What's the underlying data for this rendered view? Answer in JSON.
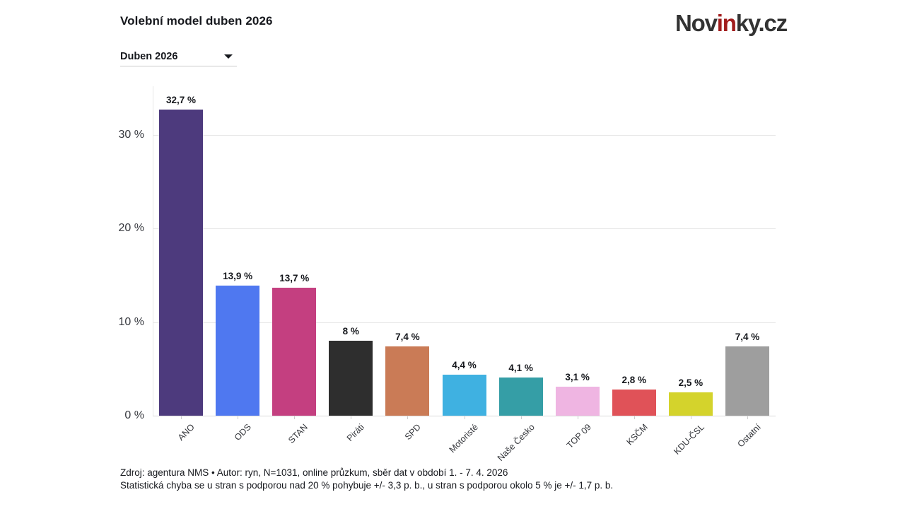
{
  "header": {
    "title": "Volební model duben 2026",
    "logo": {
      "part1": "Nov",
      "part2": "in",
      "part3": "ky.cz"
    }
  },
  "filter": {
    "selected": "Duben 2026"
  },
  "chart_data": {
    "type": "bar",
    "title": "Volební model duben 2026",
    "categories": [
      "ANO",
      "ODS",
      "STAN",
      "Piráti",
      "SPD",
      "Motoristé",
      "Naše Česko",
      "TOP 09",
      "KSČM",
      "KDU-ČSL",
      "Ostatní"
    ],
    "values": [
      32.7,
      13.9,
      13.7,
      8,
      7.4,
      4.4,
      4.1,
      3.1,
      2.8,
      2.5,
      7.4
    ],
    "value_labels": [
      "32,7 %",
      "13,9 %",
      "13,7 %",
      "8 %",
      "7,4 %",
      "4,4 %",
      "4,1 %",
      "3,1 %",
      "2,8 %",
      "2,5 %",
      "7,4 %"
    ],
    "colors": [
      "#4d3a7d",
      "#4f78f0",
      "#c43f80",
      "#2e2e2e",
      "#ca7b56",
      "#3fb1e1",
      "#359ea6",
      "#efb5e2",
      "#e05258",
      "#d4d32c",
      "#9e9e9e"
    ],
    "ylim": [
      0,
      35.2
    ],
    "yticks": [
      0,
      10,
      20,
      30
    ],
    "ytick_labels": [
      "0 %",
      "10 %",
      "20 %",
      "30 %"
    ],
    "grid": true,
    "legend_position": "none",
    "xlabel": "",
    "ylabel": ""
  },
  "footer": {
    "line1": "Zdroj: agentura NMS • Autor: ryn, N=1031, online průzkum, sběr dat v období 1. - 7. 4. 2026",
    "line2": "Statistická chyba se u stran s podporou nad 20 % pohybuje +/- 3,3 p. b., u stran s podporou okolo 5 % je +/- 1,7 p. b."
  }
}
